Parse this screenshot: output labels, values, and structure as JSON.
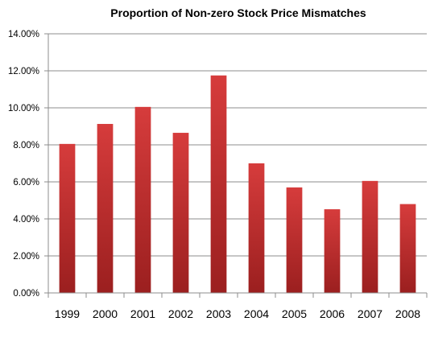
{
  "chart_data": {
    "type": "bar",
    "title": "Proportion of Non-zero Stock Price Mismatches",
    "xlabel": "",
    "ylabel": "",
    "categories": [
      "1999",
      "2000",
      "2001",
      "2002",
      "2003",
      "2004",
      "2005",
      "2006",
      "2007",
      "2008"
    ],
    "values": [
      8.05,
      9.13,
      10.05,
      8.65,
      11.75,
      7.0,
      5.7,
      4.52,
      6.05,
      4.8
    ],
    "value_unit": "%",
    "ylim": [
      0,
      14
    ],
    "yticks": [
      0,
      2,
      4,
      6,
      8,
      10,
      12,
      14
    ],
    "ytick_labels": [
      "0.00%",
      "2.00%",
      "4.00%",
      "6.00%",
      "8.00%",
      "10.00%",
      "12.00%",
      "14.00%"
    ],
    "grid": "horizontal",
    "legend": "none",
    "colors": {
      "bar_top": "#d63c3c",
      "bar_bottom": "#9b1f1f",
      "gridline": "#8c8c8c",
      "axis": "#8c8c8c"
    }
  }
}
